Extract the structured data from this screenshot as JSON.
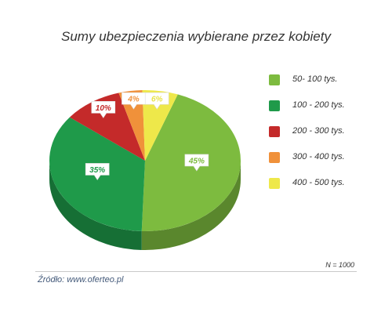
{
  "chart_data": {
    "type": "pie",
    "title": "Sumy ubezpieczenia wybierane przez kobiety",
    "categories": [
      "50- 100 tys.",
      "100 - 200 tys.",
      "200 - 300 tys.",
      "300 - 400 tys.",
      "400 - 500 tys."
    ],
    "values": [
      45,
      35,
      10,
      4,
      6
    ],
    "data_labels": [
      "45%",
      "35%",
      "10%",
      "4%",
      "6%"
    ],
    "colors": [
      "#7dbb3f",
      "#1f9a4a",
      "#c42a2a",
      "#f0913a",
      "#eee84a"
    ],
    "label_colors": [
      "#7dbb3f",
      "#1f9a4a",
      "#c42a2a",
      "#f0913a",
      "#e8e34a"
    ],
    "legend_position": "right",
    "note": "N = 1000",
    "source": "Źródło: www.oferteo.pl"
  }
}
